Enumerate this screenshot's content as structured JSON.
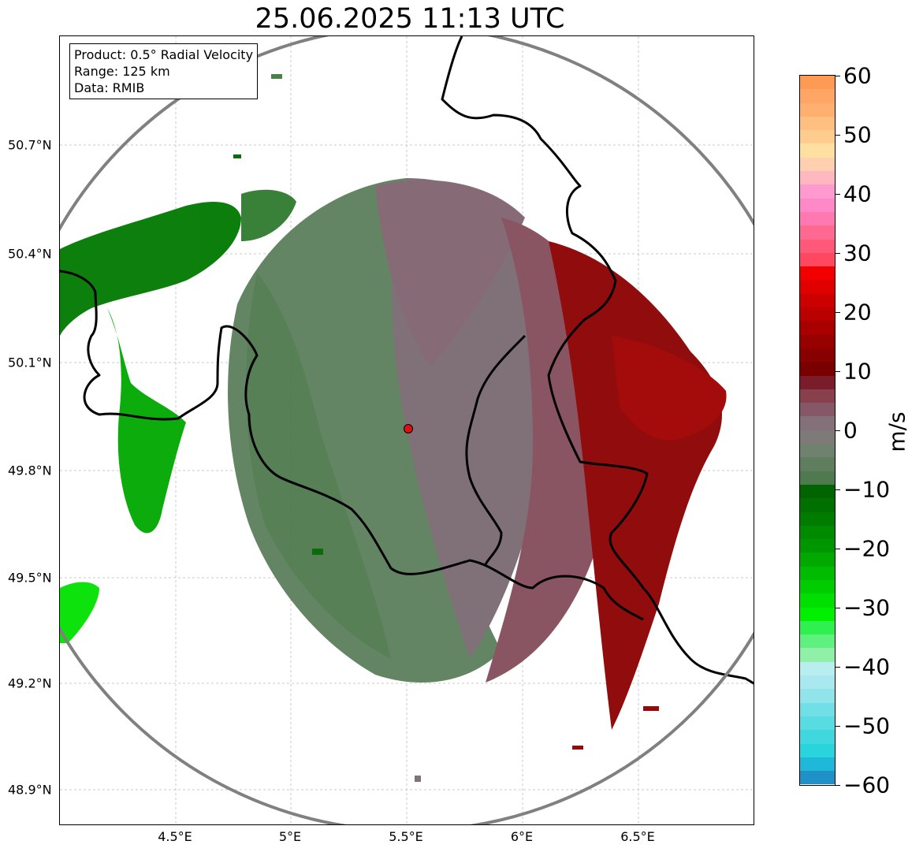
{
  "title": "25.06.2025 11:13 UTC",
  "info": {
    "product": "Product: 0.5° Radial Velocity",
    "range": "Range: 125 km",
    "data": "Data: RMIB"
  },
  "axes": {
    "lat_labels": [
      "50.7°N",
      "50.4°N",
      "50.1°N",
      "49.8°N",
      "49.5°N",
      "49.2°N",
      "48.9°N"
    ],
    "lon_labels": [
      "4.5°E",
      "5°E",
      "5.5°E",
      "6°E",
      "6.5°E"
    ]
  },
  "colorbar": {
    "unit": "m/s",
    "ticks": [
      "60",
      "50",
      "40",
      "30",
      "20",
      "10",
      "0",
      "−10",
      "−20",
      "−30",
      "−40",
      "−50",
      "−60"
    ],
    "colors_top_to_bottom": [
      "#ff9a55",
      "#ffa566",
      "#ffb070",
      "#ffbf80",
      "#ffcc90",
      "#ffe0a0",
      "#ffd0b0",
      "#ffb8c0",
      "#ff9ad0",
      "#ff88c8",
      "#ff78b0",
      "#ff6890",
      "#ff5878",
      "#ff4860",
      "#f20000",
      "#e00000",
      "#cc0000",
      "#bb0000",
      "#a80000",
      "#980000",
      "#880000",
      "#7a0000",
      "#7a1c2a",
      "#88404c",
      "#865766",
      "#847078",
      "#7d7a78",
      "#6f8270",
      "#5e7e5e",
      "#4f7a4f",
      "#006400",
      "#007000",
      "#007d00",
      "#008a00",
      "#009600",
      "#00a800",
      "#00bb00",
      "#00cc00",
      "#00e000",
      "#00f000",
      "#30f050",
      "#60f080",
      "#90f0a8",
      "#b8eef0",
      "#a8e8ee",
      "#90e4ea",
      "#70e0e6",
      "#58dce2",
      "#40d8de",
      "#2ad4dc",
      "#20b8d8",
      "#2090c8"
    ]
  },
  "legend_colors": {
    "approaching_strong": "#00e000",
    "approaching": "#3f7a3f",
    "near_zero": "#7a6e72",
    "receding": "#844c5a",
    "receding_strong": "#8c0000",
    "radar_marker": "#e01010",
    "range_ring": "#808080",
    "border": "#000000"
  },
  "radar_site": "radar-marker"
}
